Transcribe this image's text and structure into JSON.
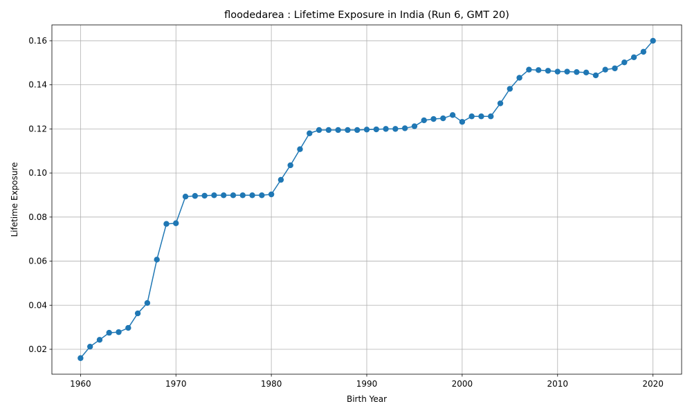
{
  "chart_data": {
    "type": "line",
    "title": "floodedarea : Lifetime Exposure in India (Run 6, GMT 20)",
    "xlabel": "Birth Year",
    "ylabel": "Lifetime Exposure",
    "xlim": [
      1957,
      2023
    ],
    "ylim": [
      0.0087,
      0.1672
    ],
    "xticks": [
      1960,
      1970,
      1980,
      1990,
      2000,
      2010,
      2020
    ],
    "yticks": [
      0.02,
      0.04,
      0.06,
      0.08,
      0.1,
      0.12,
      0.14,
      0.16
    ],
    "ytick_labels": [
      "0.02",
      "0.04",
      "0.06",
      "0.08",
      "0.10",
      "0.12",
      "0.14",
      "0.16"
    ],
    "grid": true,
    "color": "#1f77b4",
    "marker": "circle",
    "series": [
      {
        "x": [
          1960,
          1961,
          1962,
          1963,
          1964,
          1965,
          1966,
          1967,
          1968,
          1969,
          1970,
          1971,
          1972,
          1973,
          1974,
          1975,
          1976,
          1977,
          1978,
          1979,
          1980,
          1981,
          1982,
          1983,
          1984,
          1985,
          1986,
          1987,
          1988,
          1989,
          1990,
          1991,
          1992,
          1993,
          1994,
          1995,
          1996,
          1997,
          1998,
          1999,
          2000,
          2001,
          2002,
          2003,
          2004,
          2005,
          2006,
          2007,
          2008,
          2009,
          2010,
          2011,
          2012,
          2013,
          2014,
          2015,
          2016,
          2017,
          2018,
          2019,
          2020
        ],
        "y": [
          0.016,
          0.0212,
          0.0243,
          0.0275,
          0.0278,
          0.0297,
          0.0363,
          0.041,
          0.0607,
          0.0769,
          0.0772,
          0.0893,
          0.0896,
          0.0897,
          0.0899,
          0.0899,
          0.0899,
          0.0899,
          0.0899,
          0.0899,
          0.0903,
          0.0969,
          0.1035,
          0.1108,
          0.118,
          0.1195,
          0.1195,
          0.1195,
          0.1195,
          0.1195,
          0.1197,
          0.1198,
          0.12,
          0.12,
          0.1203,
          0.1212,
          0.1239,
          0.1245,
          0.1248,
          0.1263,
          0.1232,
          0.1257,
          0.1257,
          0.1257,
          0.1316,
          0.1382,
          0.1432,
          0.1469,
          0.1467,
          0.1464,
          0.146,
          0.146,
          0.1458,
          0.1456,
          0.1443,
          0.1469,
          0.1475,
          0.1502,
          0.1525,
          0.155,
          0.16
        ]
      }
    ]
  }
}
